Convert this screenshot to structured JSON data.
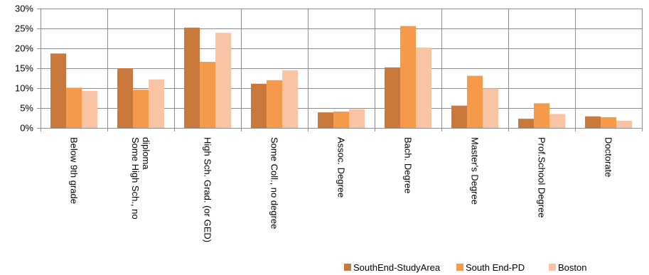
{
  "chart_data": {
    "type": "bar",
    "title": "",
    "xlabel": "",
    "ylabel": "",
    "ylim": [
      0,
      30
    ],
    "yticks": [
      "0%",
      "5%",
      "10%",
      "15%",
      "20%",
      "25%",
      "30%"
    ],
    "ytick_values": [
      0,
      5,
      10,
      15,
      20,
      25,
      30
    ],
    "grid": "horizontal",
    "legend_position": "bottom-right",
    "categories": [
      [
        "Below 9th grade"
      ],
      [
        "Some High Sch., no",
        "diploma"
      ],
      [
        "High Sch. Grad. (or GED)"
      ],
      [
        "Some Coll., no degree"
      ],
      [
        "Assoc. Degree"
      ],
      [
        "Bach. Degree"
      ],
      [
        "Master's Degree"
      ],
      [
        "Prof.School Degree"
      ],
      [
        "Doctorate"
      ]
    ],
    "series": [
      {
        "name": "SouthEnd-StudyArea",
        "color": "#C8783A",
        "values": [
          18.7,
          15.0,
          25.2,
          11.1,
          3.9,
          15.2,
          5.6,
          2.3,
          2.9
        ]
      },
      {
        "name": "South End-PD",
        "color": "#F59A4A",
        "values": [
          10.1,
          9.6,
          16.6,
          12.0,
          4.1,
          25.6,
          13.1,
          6.2,
          2.7
        ]
      },
      {
        "name": "Boston",
        "color": "#F9C4A4",
        "values": [
          9.3,
          12.2,
          23.9,
          14.5,
          4.7,
          20.2,
          9.9,
          3.5,
          1.8
        ]
      }
    ]
  }
}
